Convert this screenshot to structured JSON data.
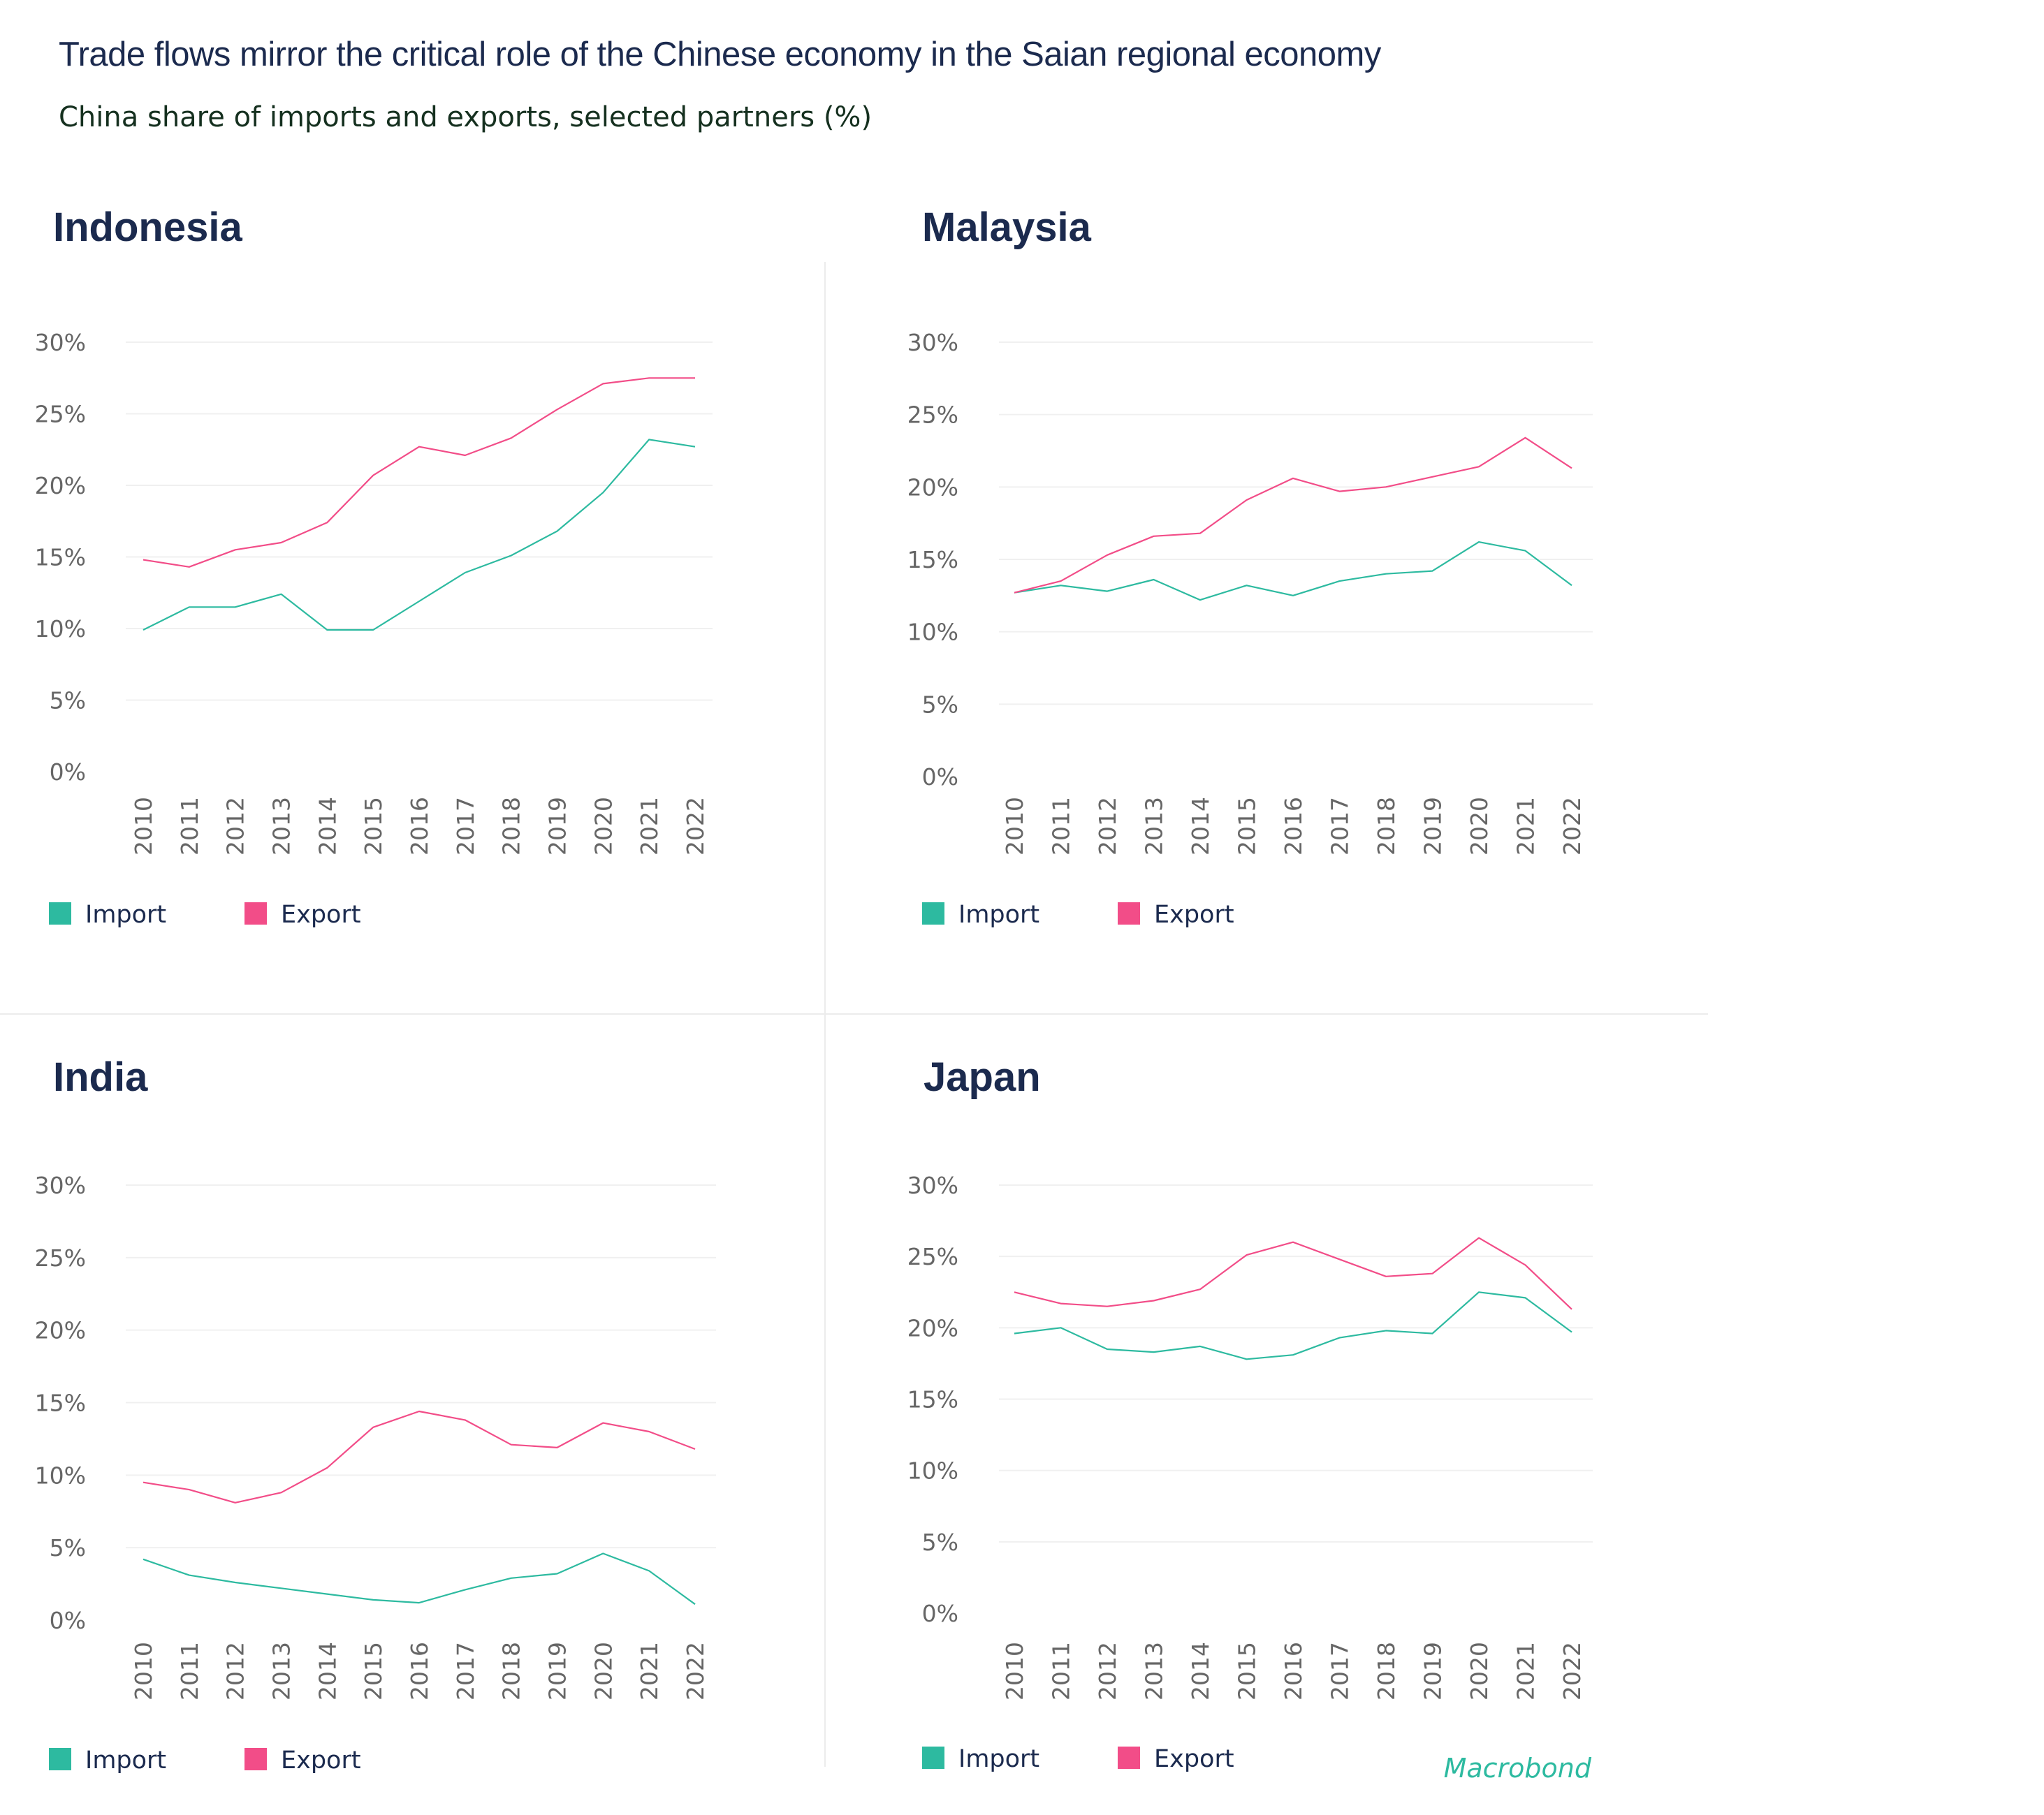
{
  "title": "Trade flows mirror the critical role of the Chinese economy in the Saian regional economy",
  "subtitle": "China share of imports and exports, selected partners (%)",
  "brand": "Macrobond",
  "colors": {
    "import": "#2dbaa0",
    "export": "#f24d88",
    "title": "#1b2a4e",
    "brand": "#2dbaa0"
  },
  "legend": {
    "import": "Import",
    "export": "Export"
  },
  "chart_data": [
    {
      "type": "line",
      "title": "Indonesia",
      "x": [
        "2010",
        "2011",
        "2012",
        "2013",
        "2014",
        "2015",
        "2016",
        "2017",
        "2018",
        "2019",
        "2020",
        "2021",
        "2022"
      ],
      "yticks": [
        "0%",
        "5%",
        "10%",
        "15%",
        "20%",
        "25%",
        "30%"
      ],
      "ylim": [
        0,
        30
      ],
      "xlabel": "",
      "ylabel": "",
      "series": [
        {
          "name": "Import",
          "values": [
            9.9,
            11.5,
            11.5,
            12.4,
            9.9,
            9.9,
            11.9,
            13.9,
            15.1,
            16.8,
            19.5,
            23.2,
            22.7
          ]
        },
        {
          "name": "Export",
          "values": [
            14.8,
            14.3,
            15.5,
            16.0,
            17.4,
            20.7,
            22.7,
            22.1,
            23.3,
            25.3,
            27.1,
            27.5,
            27.5
          ]
        }
      ]
    },
    {
      "type": "line",
      "title": "Malaysia",
      "x": [
        "2010",
        "2011",
        "2012",
        "2013",
        "2014",
        "2015",
        "2016",
        "2017",
        "2018",
        "2019",
        "2020",
        "2021",
        "2022"
      ],
      "yticks": [
        "0%",
        "5%",
        "10%",
        "15%",
        "20%",
        "25%",
        "30%"
      ],
      "ylim": [
        0,
        30
      ],
      "xlabel": "",
      "ylabel": "",
      "series": [
        {
          "name": "Import",
          "values": [
            12.7,
            13.2,
            12.8,
            13.6,
            12.2,
            13.2,
            12.5,
            13.5,
            14.0,
            14.2,
            16.2,
            15.6,
            13.2
          ]
        },
        {
          "name": "Export",
          "values": [
            12.7,
            13.5,
            15.3,
            16.6,
            16.8,
            19.1,
            20.6,
            19.7,
            20.0,
            20.7,
            21.4,
            23.4,
            21.3
          ]
        }
      ]
    },
    {
      "type": "line",
      "title": "India",
      "x": [
        "2010",
        "2011",
        "2012",
        "2013",
        "2014",
        "2015",
        "2016",
        "2017",
        "2018",
        "2019",
        "2020",
        "2021",
        "2022"
      ],
      "yticks": [
        "0%",
        "5%",
        "10%",
        "15%",
        "20%",
        "25%",
        "30%"
      ],
      "ylim": [
        0,
        30
      ],
      "xlabel": "",
      "ylabel": "",
      "series": [
        {
          "name": "Import",
          "values": [
            4.2,
            3.1,
            2.6,
            2.2,
            1.8,
            1.4,
            1.2,
            2.1,
            2.9,
            3.2,
            4.6,
            3.4,
            1.1
          ]
        },
        {
          "name": "Export",
          "values": [
            9.5,
            9.0,
            8.1,
            8.8,
            10.5,
            13.3,
            14.4,
            13.8,
            12.1,
            11.9,
            13.6,
            13.0,
            11.8
          ]
        }
      ]
    },
    {
      "type": "line",
      "title": "Japan",
      "x": [
        "2010",
        "2011",
        "2012",
        "2013",
        "2014",
        "2015",
        "2016",
        "2017",
        "2018",
        "2019",
        "2020",
        "2021",
        "2022"
      ],
      "yticks": [
        "0%",
        "5%",
        "10%",
        "15%",
        "20%",
        "25%",
        "30%"
      ],
      "ylim": [
        0,
        30
      ],
      "xlabel": "",
      "ylabel": "",
      "series": [
        {
          "name": "Import",
          "values": [
            19.6,
            20.0,
            18.5,
            18.3,
            18.7,
            17.8,
            18.1,
            19.3,
            19.8,
            19.6,
            22.5,
            22.1,
            19.7
          ]
        },
        {
          "name": "Export",
          "values": [
            22.5,
            21.7,
            21.5,
            21.9,
            22.7,
            25.1,
            26.0,
            24.8,
            23.6,
            23.8,
            26.3,
            24.4,
            21.3
          ]
        }
      ]
    }
  ]
}
